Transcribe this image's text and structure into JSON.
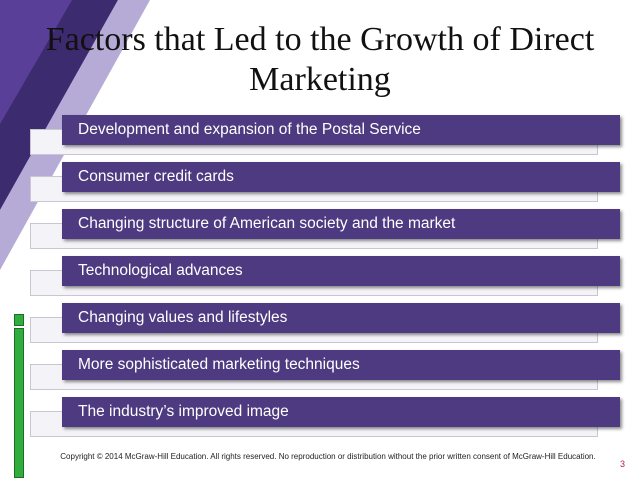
{
  "slide": {
    "title": "Factors that Led to the Growth of Direct Marketing",
    "items": [
      {
        "label": "Development and expansion of the Postal Service"
      },
      {
        "label": "Consumer credit cards"
      },
      {
        "label": "Changing structure of American society and the market"
      },
      {
        "label": "Technological advances"
      },
      {
        "label": "Changing values and lifestyles"
      },
      {
        "label": "More sophisticated marketing techniques"
      },
      {
        "label": "The industry’s improved image"
      }
    ],
    "footer": "Copyright © 2014 McGraw-Hill Education.  All rights reserved. No reproduction or distribution without the prior written consent of McGraw-Hill Education.",
    "page_number": "3"
  },
  "colors": {
    "purple_dark": "#3b2a6b",
    "purple_mid": "#6a4fa6",
    "bar": "#4e3a80",
    "accent_green": "#2fae3e",
    "page_number": "#b8233a"
  }
}
